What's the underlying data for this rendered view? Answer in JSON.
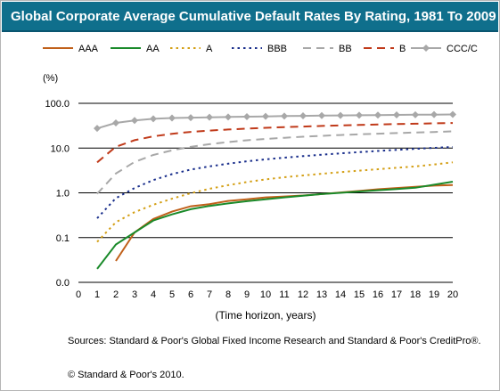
{
  "chart_data": {
    "type": "line",
    "title": "Global Corporate Average Cumulative Default Rates By Rating, 1981 To 2009",
    "xlabel": "(Time horizon, years)",
    "ylabel": "(%)",
    "xlim": [
      0,
      20
    ],
    "ylim": [
      0.01,
      100
    ],
    "y_scale": "log",
    "x_ticks": [
      0,
      1,
      2,
      3,
      4,
      5,
      6,
      7,
      8,
      9,
      10,
      11,
      12,
      13,
      14,
      15,
      16,
      17,
      18,
      19,
      20
    ],
    "y_ticks": [
      0.01,
      0.1,
      1,
      10,
      100
    ],
    "y_tick_labels": [
      "0.0",
      "0.1",
      "1.0",
      "10.0",
      "100.0"
    ],
    "grid": "horizontal",
    "legend_position": "top",
    "series": [
      {
        "name": "AAA",
        "color": "#c0601a",
        "dash": "solid",
        "x": [
          2,
          3,
          4,
          5,
          6,
          7,
          8,
          9,
          10,
          11,
          12,
          13,
          14,
          15,
          16,
          17,
          18,
          19,
          20
        ],
        "values": [
          0.03,
          0.13,
          0.26,
          0.38,
          0.5,
          0.56,
          0.66,
          0.72,
          0.79,
          0.83,
          0.87,
          0.94,
          1.02,
          1.1,
          1.2,
          1.28,
          1.36,
          1.45,
          1.5
        ]
      },
      {
        "name": "AA",
        "color": "#1a8a2a",
        "dash": "solid",
        "x": [
          1,
          2,
          3,
          4,
          5,
          6,
          7,
          8,
          9,
          10,
          11,
          12,
          13,
          14,
          15,
          16,
          17,
          18,
          19,
          20
        ],
        "values": [
          0.02,
          0.07,
          0.13,
          0.24,
          0.33,
          0.43,
          0.51,
          0.58,
          0.65,
          0.72,
          0.79,
          0.86,
          0.94,
          1.0,
          1.07,
          1.14,
          1.22,
          1.3,
          1.52,
          1.77
        ]
      },
      {
        "name": "A",
        "color": "#d4a017",
        "dash": "dotted",
        "x": [
          1,
          2,
          3,
          4,
          5,
          6,
          7,
          8,
          9,
          10,
          11,
          12,
          13,
          14,
          15,
          16,
          17,
          18,
          19,
          20
        ],
        "values": [
          0.08,
          0.22,
          0.37,
          0.54,
          0.74,
          0.98,
          1.23,
          1.48,
          1.74,
          2.0,
          2.23,
          2.44,
          2.66,
          2.9,
          3.13,
          3.37,
          3.62,
          3.9,
          4.3,
          4.8
        ]
      },
      {
        "name": "BBB",
        "color": "#1a2f8c",
        "dash": "dotted",
        "x": [
          1,
          2,
          3,
          4,
          5,
          6,
          7,
          8,
          9,
          10,
          11,
          12,
          13,
          14,
          15,
          16,
          17,
          18,
          19,
          20
        ],
        "values": [
          0.27,
          0.76,
          1.28,
          1.93,
          2.62,
          3.3,
          3.9,
          4.48,
          5.06,
          5.6,
          6.1,
          6.6,
          7.1,
          7.6,
          8.1,
          8.6,
          9.1,
          9.6,
          10.1,
          10.6
        ]
      },
      {
        "name": "BB",
        "color": "#a8a8a8",
        "dash": "dashed",
        "x": [
          1,
          2,
          3,
          4,
          5,
          6,
          7,
          8,
          9,
          10,
          11,
          12,
          13,
          14,
          15,
          16,
          17,
          18,
          19,
          20
        ],
        "values": [
          0.95,
          2.7,
          4.9,
          7.0,
          8.9,
          10.7,
          12.2,
          13.6,
          14.9,
          16.0,
          17.0,
          17.9,
          18.8,
          19.6,
          20.3,
          21.0,
          21.6,
          22.2,
          22.9,
          23.6
        ]
      },
      {
        "name": "B",
        "color": "#c03a1a",
        "dash": "dashed",
        "x": [
          1,
          2,
          3,
          4,
          5,
          6,
          7,
          8,
          9,
          10,
          11,
          12,
          13,
          14,
          15,
          16,
          17,
          18,
          19,
          20
        ],
        "values": [
          4.8,
          10.7,
          15.0,
          18.3,
          20.9,
          23.0,
          24.6,
          26.0,
          27.2,
          28.4,
          29.4,
          30.3,
          31.2,
          32.1,
          32.9,
          33.7,
          34.4,
          35.0,
          35.7,
          36.4
        ]
      },
      {
        "name": "CCC/C",
        "color": "#a8a8a8",
        "dash": "solid",
        "marker": "diamond",
        "x": [
          1,
          2,
          3,
          4,
          5,
          6,
          7,
          8,
          9,
          10,
          11,
          12,
          13,
          14,
          15,
          16,
          17,
          18,
          19,
          20
        ],
        "values": [
          27.5,
          36.5,
          41.5,
          45.0,
          46.9,
          47.9,
          48.8,
          49.5,
          50.4,
          51.1,
          51.9,
          52.5,
          53.2,
          53.7,
          54.2,
          54.6,
          55.0,
          55.5,
          56.0,
          56.5
        ]
      }
    ]
  },
  "sources": "Sources: Standard & Poor's Global Fixed Income Research and Standard & Poor's CreditPro®.",
  "copyright": "© Standard & Poor's 2010."
}
